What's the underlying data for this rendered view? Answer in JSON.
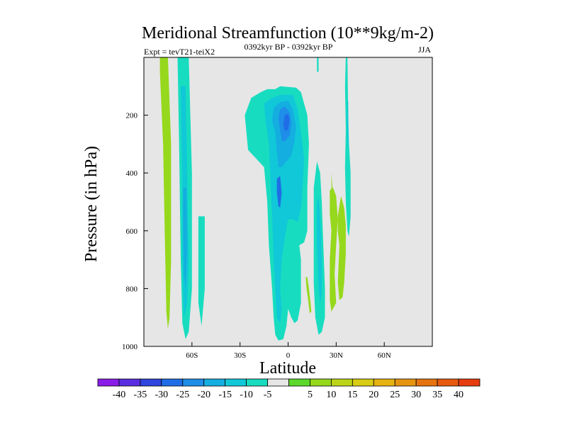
{
  "chart_data": {
    "type": "contour",
    "title": "Meridional Streamfunction (10**9kg/m-2)",
    "experiment": "Expt = tevT21-teiX2",
    "period": "0392kyr BP - 0392kyr BP",
    "season": "JJA",
    "xlabel": "Latitude",
    "ylabel": "Pressure (in hPa)",
    "xlim": [
      -90,
      90
    ],
    "ylim": [
      0,
      1000
    ],
    "y_inverted": true,
    "x_ticks": [
      {
        "value": -60,
        "label": "60S"
      },
      {
        "value": -30,
        "label": "30S"
      },
      {
        "value": 0,
        "label": "0"
      },
      {
        "value": 30,
        "label": "30N"
      },
      {
        "value": 60,
        "label": "60N"
      }
    ],
    "y_ticks": [
      {
        "value": 200,
        "label": "200"
      },
      {
        "value": 400,
        "label": "400"
      },
      {
        "value": 600,
        "label": "600"
      },
      {
        "value": 800,
        "label": "800"
      },
      {
        "value": 1000,
        "label": "1000"
      }
    ],
    "background_color": "#e6e6e6",
    "colorbar": {
      "colors": [
        "#8a1de8",
        "#5a2ee0",
        "#2f45dc",
        "#1f6de6",
        "#1e8ee8",
        "#14aee0",
        "#10c8d8",
        "#18dcc0",
        "#e6e6e6",
        "#5cd82c",
        "#96d81c",
        "#bcd418",
        "#d8cc14",
        "#e6b410",
        "#e69410",
        "#e67410",
        "#e65a10",
        "#e63c10"
      ],
      "labels": [
        "-40",
        "-35",
        "-30",
        "-25",
        "-20",
        "-15",
        "-10",
        "-5",
        "5",
        "10",
        "15",
        "20",
        "25",
        "30",
        "35",
        "40"
      ]
    },
    "regions": [
      {
        "name": "band-75S-positive",
        "level": 10,
        "points": [
          [
            -80,
            0
          ],
          [
            -75,
            0
          ],
          [
            -73,
            300
          ],
          [
            -73,
            700
          ],
          [
            -74,
            900
          ],
          [
            -75,
            940
          ],
          [
            -76,
            880
          ],
          [
            -77,
            600
          ],
          [
            -78,
            300
          ],
          [
            -80,
            50
          ]
        ]
      },
      {
        "name": "band-65S-outer",
        "level": -5,
        "points": [
          [
            -69,
            0
          ],
          [
            -62,
            0
          ],
          [
            -60,
            400
          ],
          [
            -60,
            800
          ],
          [
            -62,
            950
          ],
          [
            -64,
            975
          ],
          [
            -66,
            920
          ],
          [
            -67,
            700
          ],
          [
            -68,
            300
          ]
        ]
      },
      {
        "name": "band-65S-inner",
        "level": -10,
        "points": [
          [
            -67,
            100
          ],
          [
            -64,
            100
          ],
          [
            -63,
            400
          ],
          [
            -62,
            700
          ],
          [
            -63,
            850
          ],
          [
            -65,
            900
          ],
          [
            -66,
            700
          ],
          [
            -66,
            400
          ]
        ]
      },
      {
        "name": "band-65S-core",
        "level": -15,
        "points": [
          [
            -65.5,
            450
          ],
          [
            -63.5,
            450
          ],
          [
            -63,
            650
          ],
          [
            -64,
            800
          ],
          [
            -65,
            750
          ],
          [
            -65.5,
            600
          ]
        ]
      },
      {
        "name": "band-55S-outer",
        "level": -5,
        "points": [
          [
            -56,
            550
          ],
          [
            -52,
            550
          ],
          [
            -52,
            800
          ],
          [
            -54,
            930
          ],
          [
            -56,
            850
          ]
        ]
      },
      {
        "name": "cell-0-minus5",
        "level": -5,
        "points": [
          [
            -25,
            320
          ],
          [
            -27,
            200
          ],
          [
            -23,
            140
          ],
          [
            -17,
            120
          ],
          [
            -13,
            110
          ],
          [
            -8,
            110
          ],
          [
            -5,
            100
          ],
          [
            5,
            105
          ],
          [
            8,
            120
          ],
          [
            12,
            200
          ],
          [
            13,
            300
          ],
          [
            12,
            450
          ],
          [
            12,
            600
          ],
          [
            10,
            640
          ],
          [
            7,
            650
          ],
          [
            8,
            700
          ],
          [
            8,
            800
          ],
          [
            8,
            850
          ],
          [
            6,
            910
          ],
          [
            4,
            920
          ],
          [
            2,
            900
          ],
          [
            0,
            870
          ],
          [
            -1,
            930
          ],
          [
            -3,
            975
          ],
          [
            -6,
            980
          ],
          [
            -8,
            960
          ],
          [
            -9,
            900
          ],
          [
            -10,
            800
          ],
          [
            -12,
            650
          ],
          [
            -13,
            500
          ],
          [
            -15,
            380
          ],
          [
            -20,
            350
          ]
        ]
      },
      {
        "name": "cell-0-minus10",
        "level": -10,
        "points": [
          [
            -15,
            160
          ],
          [
            -10,
            140
          ],
          [
            -5,
            130
          ],
          [
            3,
            130
          ],
          [
            6,
            180
          ],
          [
            8,
            260
          ],
          [
            10,
            350
          ],
          [
            9,
            450
          ],
          [
            8,
            520
          ],
          [
            6,
            570
          ],
          [
            3,
            560
          ],
          [
            0,
            560
          ],
          [
            -2,
            620
          ],
          [
            -4,
            700
          ],
          [
            -5,
            800
          ],
          [
            -4,
            870
          ],
          [
            -5,
            920
          ],
          [
            -7,
            900
          ],
          [
            -8,
            800
          ],
          [
            -9,
            700
          ],
          [
            -10,
            550
          ],
          [
            -11,
            420
          ],
          [
            -12,
            300
          ],
          [
            -14,
            220
          ]
        ]
      },
      {
        "name": "cell-0-minus15",
        "level": -15,
        "points": [
          [
            -9,
            175
          ],
          [
            -5,
            155
          ],
          [
            0,
            150
          ],
          [
            3,
            180
          ],
          [
            5,
            240
          ],
          [
            4,
            290
          ],
          [
            2,
            340
          ],
          [
            -1,
            360
          ],
          [
            -4,
            380
          ],
          [
            -6,
            380
          ],
          [
            -7,
            330
          ],
          [
            -8,
            260
          ],
          [
            -10,
            220
          ]
        ]
      },
      {
        "name": "cell-0-minus20",
        "level": -20,
        "points": [
          [
            -5,
            180
          ],
          [
            -2,
            170
          ],
          [
            1,
            190
          ],
          [
            2,
            230
          ],
          [
            1,
            270
          ],
          [
            -2,
            290
          ],
          [
            -4,
            290
          ],
          [
            -5,
            250
          ],
          [
            -6,
            210
          ]
        ]
      },
      {
        "name": "cell-0-minus25",
        "level": -25,
        "points": [
          [
            -2,
            200
          ],
          [
            0,
            195
          ],
          [
            1,
            215
          ],
          [
            0,
            250
          ],
          [
            -2,
            255
          ],
          [
            -3,
            230
          ]
        ]
      },
      {
        "name": "cell-0-minus25-lower",
        "level": -25,
        "points": [
          [
            -7,
            420
          ],
          [
            -5,
            410
          ],
          [
            -4,
            470
          ],
          [
            -5,
            520
          ],
          [
            -6,
            515
          ],
          [
            -7,
            470
          ]
        ]
      },
      {
        "name": "cell-10N-plus10",
        "level": 10,
        "points": [
          [
            11,
            760
          ],
          [
            12,
            760
          ],
          [
            13,
            800
          ],
          [
            14,
            850
          ],
          [
            14.5,
            880
          ],
          [
            13.5,
            885
          ],
          [
            12.5,
            840
          ],
          [
            11.5,
            800
          ]
        ]
      },
      {
        "name": "cell-20N-minus5-top",
        "level": -5,
        "points": [
          [
            18,
            0
          ],
          [
            19,
            0
          ],
          [
            19,
            50
          ],
          [
            18,
            50
          ]
        ]
      },
      {
        "name": "cell-20N-minus5",
        "level": -5,
        "points": [
          [
            16,
            450
          ],
          [
            18,
            360
          ],
          [
            20,
            400
          ],
          [
            21,
            500
          ],
          [
            22,
            650
          ],
          [
            23,
            800
          ],
          [
            23,
            900
          ],
          [
            21,
            950
          ],
          [
            19,
            960
          ],
          [
            17,
            900
          ],
          [
            16,
            780
          ],
          [
            16,
            600
          ]
        ]
      },
      {
        "name": "cell-20N-minus10",
        "level": -10,
        "points": [
          [
            18,
            500
          ],
          [
            19,
            480
          ],
          [
            20,
            550
          ],
          [
            21,
            700
          ],
          [
            21,
            820
          ],
          [
            20,
            850
          ],
          [
            19,
            800
          ],
          [
            18,
            650
          ]
        ]
      },
      {
        "name": "cell-28N-plus10-upper",
        "level": 10,
        "points": [
          [
            27,
            400
          ],
          [
            28,
            480
          ],
          [
            29,
            560
          ],
          [
            28,
            580
          ],
          [
            27,
            520
          ]
        ]
      },
      {
        "name": "cell-28N-plus10",
        "level": 10,
        "points": [
          [
            26,
            460
          ],
          [
            28,
            450
          ],
          [
            30,
            480
          ],
          [
            31,
            560
          ],
          [
            30,
            650
          ],
          [
            29,
            750
          ],
          [
            30,
            850
          ],
          [
            28,
            870
          ],
          [
            27,
            880
          ],
          [
            26,
            840
          ],
          [
            26,
            700
          ],
          [
            27,
            600
          ],
          [
            26,
            540
          ]
        ]
      },
      {
        "name": "cell-36N-minus5",
        "level": -5,
        "points": [
          [
            36,
            0
          ],
          [
            37,
            0
          ],
          [
            37.5,
            200
          ],
          [
            38,
            300
          ],
          [
            39,
            400
          ],
          [
            39,
            550
          ],
          [
            38,
            620
          ],
          [
            37,
            600
          ],
          [
            36,
            500
          ],
          [
            35.5,
            380
          ],
          [
            36,
            250
          ],
          [
            35.5,
            100
          ]
        ]
      },
      {
        "name": "cell-36N-minus10",
        "level": -10,
        "points": [
          [
            37,
            150
          ],
          [
            37.5,
            150
          ],
          [
            37.5,
            300
          ],
          [
            37,
            320
          ],
          [
            36.8,
            220
          ]
        ]
      },
      {
        "name": "cell-32N-plus10",
        "level": 10,
        "points": [
          [
            31,
            550
          ],
          [
            33,
            480
          ],
          [
            35,
            520
          ],
          [
            36,
            580
          ],
          [
            36,
            680
          ],
          [
            35,
            780
          ],
          [
            34,
            830
          ],
          [
            32,
            840
          ],
          [
            31,
            780
          ],
          [
            32,
            650
          ],
          [
            31,
            600
          ]
        ]
      }
    ]
  }
}
